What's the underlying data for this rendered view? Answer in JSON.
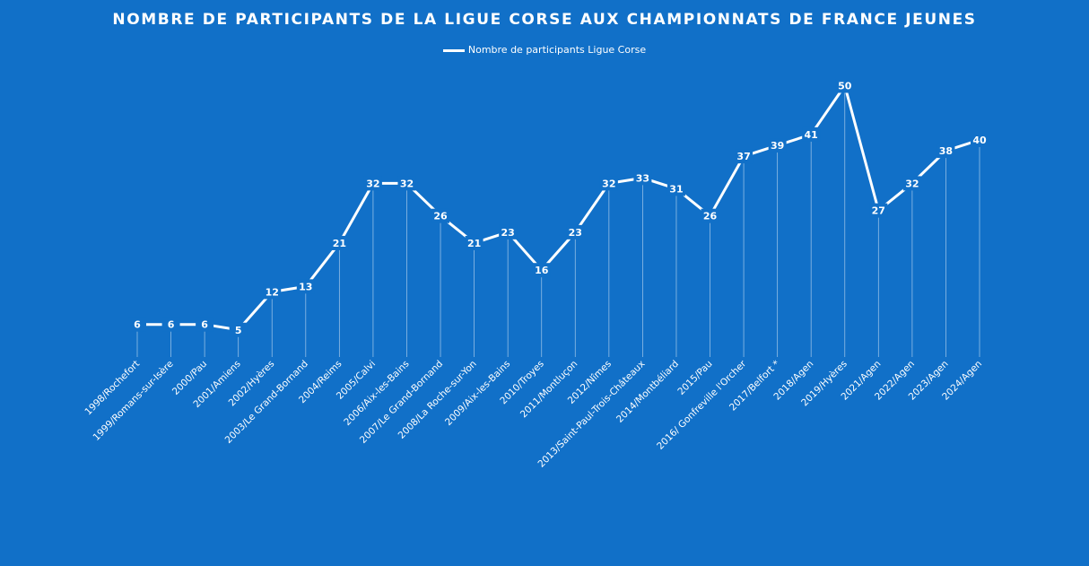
{
  "chart_data": {
    "type": "line",
    "title": "NOMBRE DE PARTICIPANTS DE LA LIGUE CORSE AUX CHAMPIONNATS DE FRANCE JEUNES",
    "legend": {
      "position": "top",
      "entries": [
        "Nombre de participants Ligue Corse"
      ]
    },
    "xlabel": "",
    "ylabel": "",
    "ylim": [
      0,
      55
    ],
    "grid": false,
    "colors": {
      "background": "#1170c8",
      "line": "#ffffff"
    },
    "categories": [
      "1998/Rochefort",
      "1999/Romans-sur-Isère",
      "2000/Pau",
      "2001/Amiens",
      "2002/Hyères",
      "2003/Le Grand-Bornand",
      "2004/Reims",
      "2005/Calvi",
      "2006/Aix-les-Bains",
      "2007/Le Grand-Bornand",
      "2008/La Roche-sur-Yon",
      "2009/Aix-les-Bains",
      "2010/Troyes",
      "2011/Montluçon",
      "2012/Nîmes",
      "2013/Saint-Paul-Trois-Châteaux",
      "2014/Montbéliard",
      "2015/Pau",
      "2016/ Gonfreville l'Orcher",
      "2017/Belfort *",
      "2018/Agen",
      "2019/Hyères",
      "2021/Agen",
      "2022/Agen",
      "2023/Agen",
      "2024/Agen"
    ],
    "series": [
      {
        "name": "Nombre de participants Ligue Corse",
        "values": [
          6,
          6,
          6,
          5,
          12,
          13,
          21,
          32,
          32,
          26,
          21,
          23,
          16,
          23,
          32,
          33,
          31,
          26,
          37,
          39,
          41,
          50,
          27,
          32,
          38,
          40
        ]
      }
    ]
  }
}
